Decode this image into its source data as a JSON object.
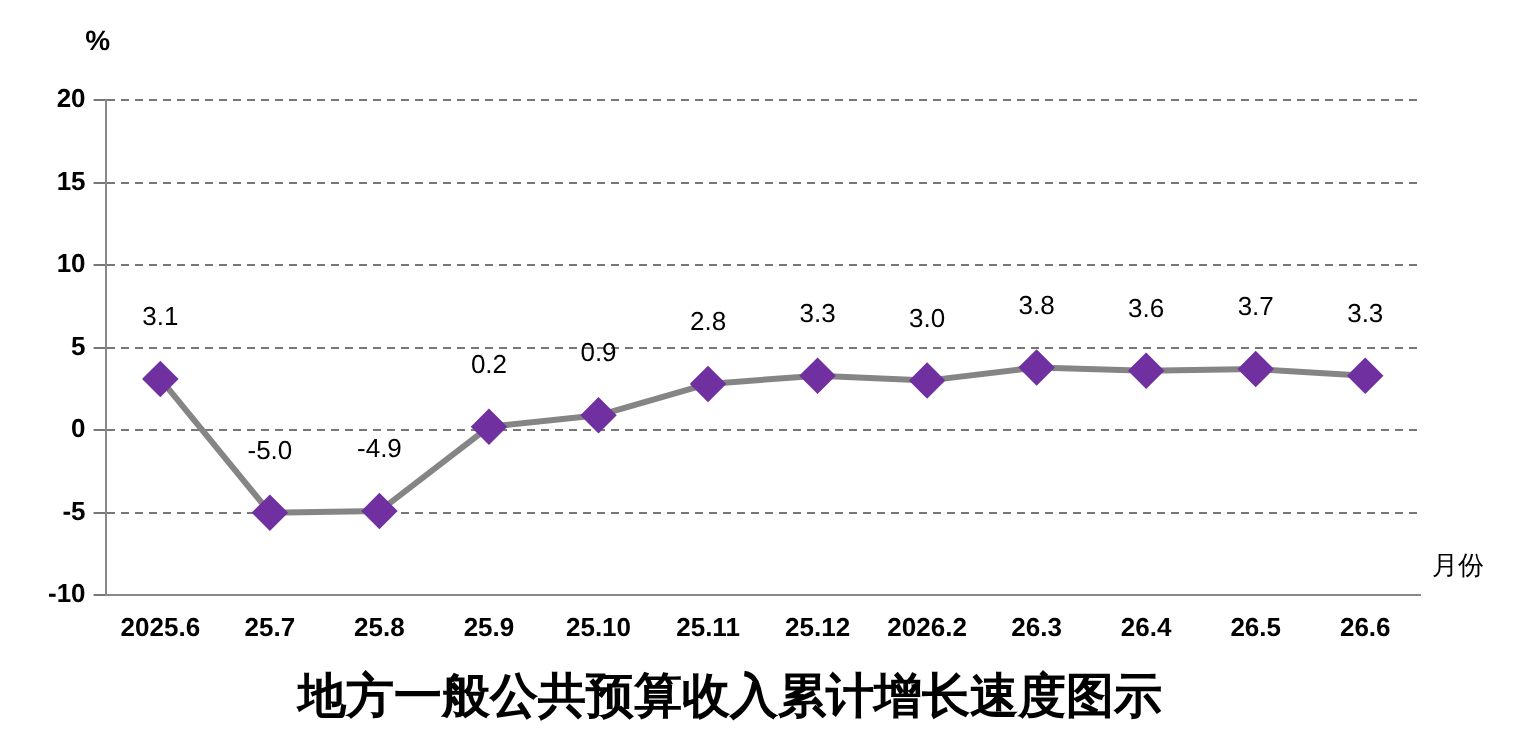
{
  "chart_data": {
    "type": "line",
    "title": "地方一般公共预算收入累计增长速度图示",
    "ylabel": "%",
    "xlabel": "月份",
    "categories": [
      "2025.6",
      "25.7",
      "25.8",
      "25.9",
      "25.10",
      "25.11",
      "25.12",
      "2026.2",
      "26.3",
      "26.4",
      "26.5",
      "26.6"
    ],
    "series": [
      {
        "color": "#858585",
        "colors": [
          "#7030a0",
          "#7030a0",
          "#7030a0",
          "#7030a0",
          "#7030a0",
          "#7030a0",
          "#7030a0",
          "#7030a0",
          "#7030a0",
          "#7030a0",
          "#7030a0",
          "#7030a0"
        ],
        "values": [
          3.1,
          -5.0,
          -4.9,
          0.2,
          0.9,
          2.8,
          3.3,
          3.0,
          3.8,
          3.6,
          3.7,
          3.3
        ],
        "value_labels": [
          "3.1",
          "-5.0",
          "-4.9",
          "0.2",
          "0.9",
          "2.8",
          "3.3",
          "3.0",
          "3.8",
          "3.6",
          "3.7",
          "3.3"
        ]
      }
    ],
    "ylim": [
      -10,
      20
    ],
    "yticks": [
      -10,
      -5,
      0,
      5,
      10,
      15,
      20
    ],
    "grid": "y",
    "marker": "diamond",
    "line_style": "solid",
    "legend": false
  }
}
